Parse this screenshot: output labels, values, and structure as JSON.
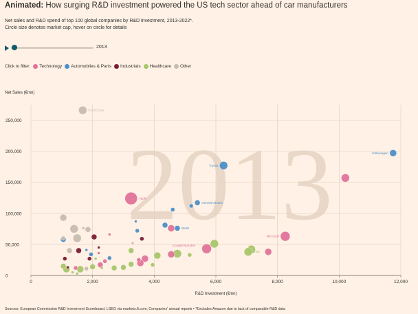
{
  "header": {
    "title_bold": "Animated:",
    "title_rest": " How surging R&D investment powered the US tech sector ahead of car manufacturers",
    "subtitle_1": "Net sales and R&D spend of top 100 global companies by R&D investment, 2013-2022*.",
    "subtitle_2": "Circle size denotes market cap, hover on circle for details"
  },
  "controls": {
    "year": "2013",
    "slider_progress": 0.02
  },
  "filter": {
    "label": "Click to filter:",
    "items": [
      {
        "label": "Technology",
        "color": "#e0749b"
      },
      {
        "label": "Automobiles & Parts",
        "color": "#4e91c9"
      },
      {
        "label": "Industrials",
        "color": "#7a1e35"
      },
      {
        "label": "Healthcare",
        "color": "#a8c66c"
      },
      {
        "label": "Other",
        "color": "#c9bcb0"
      }
    ]
  },
  "footer": {
    "source": "Sources: European Commission R&D Investment Scoreboard, LSEG via markets.ft.com, Companies' annual reports • *Excludes Amazon due to lack of comparable R&D data"
  },
  "chart_data": {
    "type": "scatter",
    "title": "",
    "xlabel": "R&D Investment (€mn)",
    "ylabel": "Net Sales (€mn)",
    "xlim": [
      0,
      12000
    ],
    "ylim": [
      0,
      275000
    ],
    "xticks": [
      0,
      2000,
      4000,
      6000,
      8000,
      10000,
      12000
    ],
    "xtick_labels": [
      "0",
      "2,000",
      "4,000",
      "6,000",
      "8,000",
      "10,000",
      "12,000"
    ],
    "yticks": [
      0,
      50000,
      100000,
      150000,
      200000,
      250000
    ],
    "ytick_labels": [
      "0",
      "50,000",
      "100,000",
      "150,000",
      "200,000",
      "250,000"
    ],
    "background_year": "2013",
    "grid": true,
    "colors": {
      "Technology": "#e0749b",
      "Automobiles & Parts": "#4e91c9",
      "Industrials": "#7a1e35",
      "Healthcare": "#a8c66c",
      "Other": "#c9bcb0"
    },
    "points": [
      {
        "x": 1680,
        "y": 266000,
        "r": 6,
        "cat": "Other",
        "label": "PetroChina"
      },
      {
        "x": 11750,
        "y": 197000,
        "r": 5,
        "cat": "Automobiles & Parts",
        "label": "Volkswagen"
      },
      {
        "x": 10200,
        "y": 157000,
        "r": 6,
        "cat": "Technology"
      },
      {
        "x": 6250,
        "y": 177000,
        "r": 6,
        "cat": "Automobiles & Parts",
        "label": "Toyota"
      },
      {
        "x": 3250,
        "y": 124000,
        "r": 9,
        "cat": "Technology",
        "label": "Apple"
      },
      {
        "x": 5400,
        "y": 117000,
        "r": 4,
        "cat": "Automobiles & Parts",
        "label": "General Motors"
      },
      {
        "x": 5200,
        "y": 112000,
        "r": 3,
        "cat": "Automobiles & Parts"
      },
      {
        "x": 4600,
        "y": 106000,
        "r": 3,
        "cat": "Automobiles & Parts"
      },
      {
        "x": 4750,
        "y": 76000,
        "r": 4,
        "cat": "Automobiles & Parts",
        "label": "BMW"
      },
      {
        "x": 4550,
        "y": 76000,
        "r": 5,
        "cat": "Technology"
      },
      {
        "x": 4350,
        "y": 81000,
        "r": 4,
        "cat": "Automobiles & Parts"
      },
      {
        "x": 8250,
        "y": 63000,
        "r": 7,
        "cat": "Technology",
        "label": "Microsoft"
      },
      {
        "x": 5700,
        "y": 43000,
        "r": 7,
        "cat": "Technology",
        "label": "Google/Alphabet"
      },
      {
        "x": 5950,
        "y": 51000,
        "r": 6,
        "cat": "Healthcare"
      },
      {
        "x": 7150,
        "y": 42000,
        "r": 6,
        "cat": "Healthcare"
      },
      {
        "x": 7050,
        "y": 38000,
        "r": 6,
        "cat": "Healthcare",
        "label": "Intel"
      },
      {
        "x": 7700,
        "y": 38000,
        "r": 5,
        "cat": "Technology"
      },
      {
        "x": 4750,
        "y": 35000,
        "r": 6,
        "cat": "Healthcare"
      },
      {
        "x": 4550,
        "y": 34000,
        "r": 5,
        "cat": "Technology"
      },
      {
        "x": 5150,
        "y": 33000,
        "r": 3,
        "cat": "Healthcare"
      },
      {
        "x": 4100,
        "y": 32000,
        "r": 5,
        "cat": "Healthcare"
      },
      {
        "x": 3700,
        "y": 27000,
        "r": 5,
        "cat": "Technology"
      },
      {
        "x": 3550,
        "y": 20000,
        "r": 5,
        "cat": "Technology"
      },
      {
        "x": 3500,
        "y": 25000,
        "r": 3,
        "cat": "Technology"
      },
      {
        "x": 3250,
        "y": 40000,
        "r": 4,
        "cat": "Healthcare"
      },
      {
        "x": 3250,
        "y": 18000,
        "r": 4,
        "cat": "Healthcare"
      },
      {
        "x": 3950,
        "y": 17000,
        "r": 3,
        "cat": "Healthcare"
      },
      {
        "x": 3000,
        "y": 13000,
        "r": 4,
        "cat": "Healthcare"
      },
      {
        "x": 2700,
        "y": 12000,
        "r": 4,
        "cat": "Healthcare"
      },
      {
        "x": 2250,
        "y": 17000,
        "r": 4,
        "cat": "Technology"
      },
      {
        "x": 2400,
        "y": 23000,
        "r": 3,
        "cat": "Technology"
      },
      {
        "x": 2050,
        "y": 62000,
        "r": 4,
        "cat": "Industrials"
      },
      {
        "x": 2550,
        "y": 66000,
        "r": 2,
        "cat": "Technology"
      },
      {
        "x": 3600,
        "y": 59000,
        "r": 3,
        "cat": "Industrials"
      },
      {
        "x": 3450,
        "y": 72000,
        "r": 3,
        "cat": "Automobiles & Parts"
      },
      {
        "x": 3400,
        "y": 87000,
        "r": 2,
        "cat": "Automobiles & Parts"
      },
      {
        "x": 3300,
        "y": 52000,
        "r": 2,
        "cat": "Other"
      },
      {
        "x": 1050,
        "y": 93000,
        "r": 5,
        "cat": "Other"
      },
      {
        "x": 1400,
        "y": 75000,
        "r": 6,
        "cat": "Other"
      },
      {
        "x": 1850,
        "y": 74000,
        "r": 4,
        "cat": "Other"
      },
      {
        "x": 1700,
        "y": 76000,
        "r": 2,
        "cat": "Other"
      },
      {
        "x": 1050,
        "y": 58000,
        "r": 4,
        "cat": "Automobiles & Parts"
      },
      {
        "x": 1500,
        "y": 60000,
        "r": 6,
        "cat": "Other"
      },
      {
        "x": 1050,
        "y": 60000,
        "r": 3,
        "cat": "Other"
      },
      {
        "x": 1250,
        "y": 40000,
        "r": 4,
        "cat": "Other"
      },
      {
        "x": 1550,
        "y": 40000,
        "r": 4,
        "cat": "Industrials"
      },
      {
        "x": 1800,
        "y": 41000,
        "r": 2,
        "cat": "Automobiles & Parts"
      },
      {
        "x": 2200,
        "y": 45000,
        "r": 2,
        "cat": "Industrials"
      },
      {
        "x": 1950,
        "y": 34000,
        "r": 3,
        "cat": "Automobiles & Parts"
      },
      {
        "x": 2200,
        "y": 36000,
        "r": 2,
        "cat": "Technology"
      },
      {
        "x": 1100,
        "y": 27000,
        "r": 3,
        "cat": "Industrials"
      },
      {
        "x": 1900,
        "y": 27000,
        "r": 3,
        "cat": "Industrials"
      },
      {
        "x": 2100,
        "y": 27000,
        "r": 2,
        "cat": "Healthcare"
      },
      {
        "x": 2550,
        "y": 28000,
        "r": 3,
        "cat": "Automobiles & Parts"
      },
      {
        "x": 1050,
        "y": 15000,
        "r": 4,
        "cat": "Healthcare"
      },
      {
        "x": 1150,
        "y": 10000,
        "r": 5,
        "cat": "Healthcare"
      },
      {
        "x": 1450,
        "y": 12000,
        "r": 3,
        "cat": "Technology"
      },
      {
        "x": 1600,
        "y": 10000,
        "r": 5,
        "cat": "Healthcare"
      },
      {
        "x": 1800,
        "y": 11000,
        "r": 3,
        "cat": "Other"
      },
      {
        "x": 2000,
        "y": 14000,
        "r": 4,
        "cat": "Healthcare"
      },
      {
        "x": 2300,
        "y": 12000,
        "r": 2,
        "cat": "Healthcare"
      },
      {
        "x": 1350,
        "y": 5000,
        "r": 2,
        "cat": "Healthcare"
      },
      {
        "x": 1500,
        "y": 3000,
        "r": 2,
        "cat": "Healthcare"
      },
      {
        "x": 1200,
        "y": 13000,
        "r": 2,
        "cat": "Industrials"
      }
    ]
  }
}
